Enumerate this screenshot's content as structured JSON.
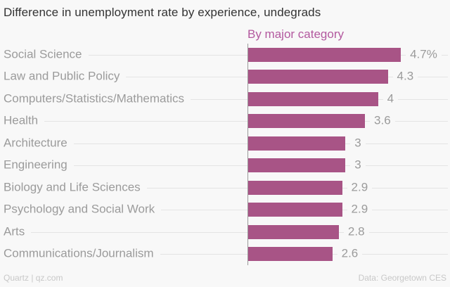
{
  "title": "Difference in unemployment rate by experience, undegrads",
  "legend_label": "By major category",
  "footer": {
    "left": "Quartz | qz.com",
    "right": "Data: Georgetown CES"
  },
  "colors": {
    "background": "#f8f8f8",
    "bar": "#a85486",
    "legend_text": "#b3599f",
    "title_text": "#333333",
    "label_text": "#9b9b9b",
    "gridline": "#e4e4e4",
    "axis_line": "#9a9a9a",
    "footer_text": "#c8c8c8"
  },
  "chart_data": {
    "type": "bar",
    "orientation": "horizontal",
    "title": "Difference in unemployment rate by experience, undegrads",
    "subtitle": "By major category",
    "xlabel": "",
    "ylabel": "",
    "xlim": [
      0,
      6.1
    ],
    "grid": true,
    "legend_position": "top",
    "categories": [
      "Social Science",
      "Law and Public Policy",
      "Computers/Statistics/Mathematics",
      "Health",
      "Architecture",
      "Engineering",
      "Biology and Life Sciences",
      "Psychology and Social Work",
      "Arts",
      "Communications/Journalism"
    ],
    "values": [
      4.7,
      4.3,
      4,
      3.6,
      3,
      3,
      2.9,
      2.9,
      2.8,
      2.6
    ],
    "value_labels": [
      "4.7%",
      "4.3",
      "4",
      "3.6",
      "3",
      "3",
      "2.9",
      "2.9",
      "2.8",
      "2.6"
    ],
    "source": "Data: Georgetown CES",
    "credit": "Quartz | qz.com"
  }
}
